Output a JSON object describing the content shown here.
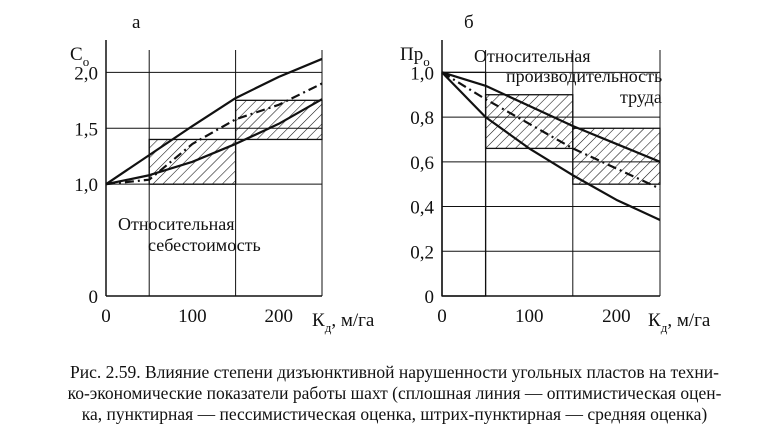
{
  "caption": {
    "lines": [
      "Рис. 2.59. Влияние степени дизъюнктивной нарушенности угольных пластов на техни-",
      "ко-экономические показатели работы шахт (сплошная линия — оптимистическая оцен-",
      "ка, пунктирная — пессимистическая оценка, штрих-пунктирная — средняя оценка)"
    ]
  },
  "chart_data": [
    {
      "panel_label": "а",
      "type": "line",
      "ylabel_main": "C",
      "ylabel_sub": "о",
      "xlabel_main": "К",
      "xlabel_sub": "д",
      "xlabel_unit": ", м/га",
      "xlim": [
        0,
        250
      ],
      "ylim": [
        0,
        2.2
      ],
      "xticks": [
        "0",
        "100",
        "200"
      ],
      "xtick_values": [
        0,
        100,
        200
      ],
      "yticks": [
        "0",
        "1,0",
        "1,5",
        "2,0"
      ],
      "ytick_values": [
        0,
        1.0,
        1.5,
        2.0
      ],
      "grid_x": [
        50,
        150
      ],
      "annotation": [
        "Относительная",
        "себестоимость"
      ],
      "boxes": [
        {
          "x": [
            50,
            150
          ],
          "y": [
            1.0,
            1.4
          ]
        },
        {
          "x": [
            150,
            250
          ],
          "y": [
            1.4,
            1.75
          ]
        }
      ],
      "series": [
        {
          "style": "solid",
          "x": [
            0,
            50,
            100,
            150,
            200,
            250
          ],
          "y": [
            1.0,
            1.26,
            1.52,
            1.77,
            1.96,
            2.12
          ]
        },
        {
          "style": "solid",
          "x": [
            0,
            50,
            100,
            150,
            200,
            250
          ],
          "y": [
            1.0,
            1.08,
            1.2,
            1.36,
            1.54,
            1.76
          ]
        },
        {
          "style": "dashdot",
          "x": [
            0,
            50,
            100,
            150,
            200,
            250
          ],
          "y": [
            1.0,
            1.04,
            1.36,
            1.58,
            1.71,
            1.9
          ]
        }
      ]
    },
    {
      "panel_label": "б",
      "type": "line",
      "ylabel_main": "Пр",
      "ylabel_sub": "о",
      "xlabel_main": "К",
      "xlabel_sub": "д",
      "xlabel_unit": ", м/га",
      "xlim": [
        0,
        250
      ],
      "ylim": [
        0,
        1.1
      ],
      "xticks": [
        "0",
        "100",
        "200"
      ],
      "xtick_values": [
        0,
        100,
        200
      ],
      "yticks": [
        "0",
        "0,2",
        "0,4",
        "0,6",
        "0,8",
        "1,0"
      ],
      "ytick_values": [
        0,
        0.2,
        0.4,
        0.6,
        0.8,
        1.0
      ],
      "grid_x": [
        50,
        150
      ],
      "annotation": [
        "Относительная",
        "производительность",
        "труда"
      ],
      "boxes": [
        {
          "x": [
            0,
            50
          ],
          "y": [
            0.0,
            1.0
          ]
        },
        {
          "x": [
            50,
            150
          ],
          "y": [
            0.66,
            0.9
          ]
        },
        {
          "x": [
            150,
            250
          ],
          "y": [
            0.5,
            0.75
          ]
        }
      ],
      "series": [
        {
          "style": "solid",
          "x": [
            0,
            50,
            100,
            150,
            200,
            250
          ],
          "y": [
            1.0,
            0.94,
            0.85,
            0.76,
            0.68,
            0.6
          ]
        },
        {
          "style": "solid",
          "x": [
            0,
            50,
            100,
            150,
            200,
            250
          ],
          "y": [
            1.0,
            0.8,
            0.66,
            0.54,
            0.43,
            0.34
          ]
        },
        {
          "style": "dashdot",
          "x": [
            0,
            50,
            100,
            150,
            200,
            250
          ],
          "y": [
            1.0,
            0.88,
            0.77,
            0.66,
            0.57,
            0.48
          ]
        }
      ]
    }
  ]
}
